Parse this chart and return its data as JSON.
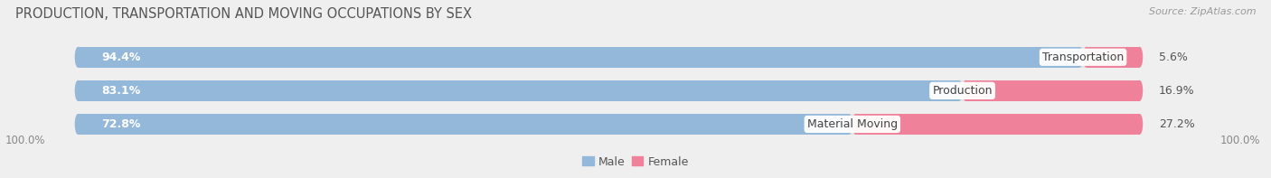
{
  "title": "PRODUCTION, TRANSPORTATION AND MOVING OCCUPATIONS BY SEX",
  "source": "Source: ZipAtlas.com",
  "categories": [
    "Transportation",
    "Production",
    "Material Moving"
  ],
  "male_values": [
    94.4,
    83.1,
    72.8
  ],
  "female_values": [
    5.6,
    16.9,
    27.2
  ],
  "male_color": "#94b8d9",
  "female_color": "#f0819a",
  "male_label": "Male",
  "female_label": "Female",
  "bg_color": "#efefef",
  "bar_bg_color": "#e2e2e2",
  "title_fontsize": 10.5,
  "bar_label_fontsize": 9,
  "cat_label_fontsize": 9,
  "axis_label_fontsize": 8.5,
  "legend_fontsize": 9,
  "source_fontsize": 8,
  "left_axis_label": "100.0%",
  "right_axis_label": "100.0%"
}
